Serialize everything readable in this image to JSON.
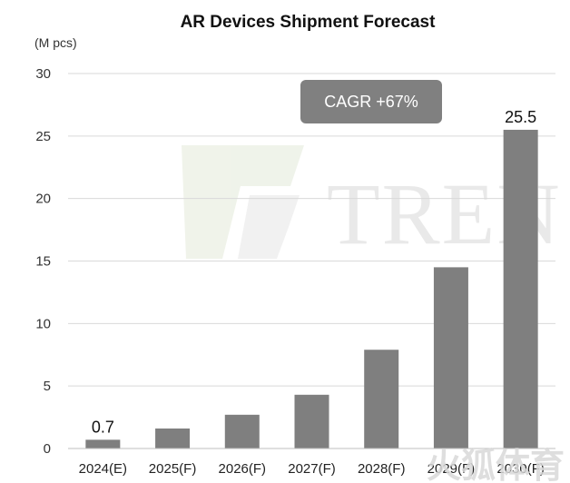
{
  "chart_data": {
    "type": "bar",
    "title": "AR Devices Shipment Forecast",
    "unit_label": "(M pcs)",
    "categories": [
      "2024(E)",
      "2025(F)",
      "2026(F)",
      "2027(F)",
      "2028(F)",
      "2029(F)",
      "2030(F)"
    ],
    "values": [
      0.7,
      1.6,
      2.7,
      4.3,
      7.9,
      14.5,
      25.5
    ],
    "data_labels": [
      {
        "category": "2024(E)",
        "text": "0.7"
      },
      {
        "category": "2030(F)",
        "text": "25.5"
      }
    ],
    "ylim": [
      0,
      30
    ],
    "yticks": [
      0,
      5,
      10,
      15,
      20,
      25,
      30
    ],
    "grid": "horizontal",
    "bar_color": "#7f7f7f",
    "annotation": {
      "text": "CAGR +67%",
      "color": "#808080"
    }
  },
  "watermark": {
    "text": "TREN"
  },
  "overlay_watermark": {
    "text": "火狐体育"
  }
}
